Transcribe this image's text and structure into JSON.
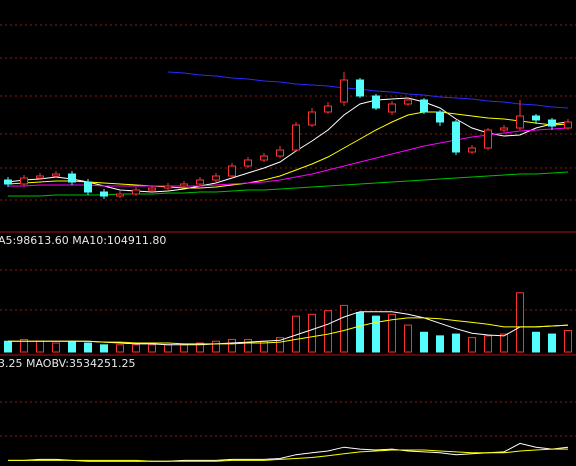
{
  "chart_data": [
    {
      "type": "candlestick",
      "open": [
        52,
        48,
        54,
        56,
        58,
        50,
        40,
        36,
        38,
        42,
        44,
        46,
        48,
        52,
        56,
        66,
        72,
        76,
        82,
        107,
        120,
        130,
        152,
        136,
        120,
        128,
        132,
        120,
        110,
        80,
        84,
        102,
        104,
        116,
        112,
        104
      ],
      "high": [
        55,
        57,
        59,
        61,
        61,
        53,
        43,
        41,
        45,
        47,
        49,
        51,
        55,
        59,
        69,
        75,
        79,
        86,
        110,
        124,
        130,
        160,
        154,
        138,
        131,
        135,
        134,
        122,
        112,
        87,
        104,
        107,
        132,
        118,
        114,
        113
      ],
      "low": [
        45,
        46,
        52,
        54,
        47,
        37,
        33,
        34,
        36,
        40,
        42,
        44,
        46,
        50,
        54,
        64,
        70,
        74,
        80,
        105,
        118,
        126,
        134,
        122,
        117,
        126,
        118,
        106,
        77,
        78,
        82,
        100,
        102,
        108,
        102,
        102
      ],
      "close": [
        48,
        54,
        56,
        58,
        50,
        40,
        36,
        38,
        42,
        44,
        46,
        48,
        52,
        56,
        66,
        72,
        76,
        82,
        107,
        120,
        126,
        152,
        136,
        124,
        128,
        132,
        120,
        110,
        80,
        84,
        102,
        104,
        116,
        112,
        106,
        110
      ],
      "up_color": "#ff3232",
      "down_color": "#54fcfc",
      "lines": [
        {
          "color": "#ffffff",
          "values": [
            50,
            52,
            53,
            55,
            53,
            50,
            46,
            42,
            41,
            40,
            41,
            43,
            46,
            49,
            54,
            59,
            64,
            70,
            81,
            91,
            102,
            117,
            128,
            132,
            133,
            134,
            130,
            124,
            113,
            104,
            99,
            96,
            97,
            104,
            108,
            110
          ]
        },
        {
          "color": "#ffff00",
          "values": [
            48,
            49,
            50,
            51,
            51,
            50,
            49,
            48,
            47,
            46,
            45,
            44,
            44,
            45,
            47,
            49,
            52,
            56,
            62,
            68,
            75,
            84,
            93,
            102,
            110,
            117,
            120,
            120,
            118,
            116,
            114,
            113,
            111,
            109,
            107,
            108
          ]
        },
        {
          "color": "#ff00ff",
          "values": [
            46,
            46,
            47,
            47,
            47,
            47,
            46,
            46,
            46,
            46,
            46,
            46,
            46,
            47,
            48,
            49,
            50,
            52,
            55,
            58,
            62,
            66,
            70,
            74,
            78,
            82,
            86,
            89,
            92,
            95,
            97,
            99,
            101,
            102,
            103,
            104
          ]
        },
        {
          "color": "#00c000",
          "values": [
            36,
            36,
            36,
            37,
            37,
            37,
            37,
            38,
            38,
            38,
            39,
            39,
            40,
            40,
            41,
            42,
            42,
            43,
            44,
            45,
            46,
            47,
            48,
            49,
            50,
            51,
            52,
            53,
            54,
            55,
            56,
            57,
            58,
            58,
            59,
            60
          ]
        },
        {
          "color": "#2a2aff",
          "values": [
            null,
            null,
            null,
            null,
            null,
            null,
            null,
            null,
            null,
            null,
            160,
            159,
            157,
            156,
            154,
            153,
            151,
            150,
            148,
            147,
            146,
            144,
            143,
            141,
            140,
            138,
            137,
            135,
            134,
            133,
            131,
            130,
            128,
            127,
            125,
            124
          ]
        }
      ],
      "ylim": [
        0,
        232
      ]
    },
    {
      "type": "bar",
      "legend": "A5:98613.60  MA10:104911.80",
      "values": [
        12,
        14,
        12,
        10,
        12,
        10,
        8,
        8,
        8,
        8,
        8,
        8,
        10,
        12,
        14,
        14,
        12,
        16,
        40,
        42,
        46,
        52,
        44,
        40,
        42,
        30,
        22,
        18,
        20,
        16,
        18,
        20,
        66,
        22,
        20,
        24
      ],
      "lines": [
        {
          "color": "#ffffff",
          "values": [
            12,
            12,
            12,
            12,
            12,
            12,
            11,
            10,
            9,
            9,
            8,
            8,
            8,
            9,
            10,
            11,
            12,
            13,
            19,
            25,
            31,
            39,
            45,
            45,
            45,
            42,
            38,
            32,
            26,
            21,
            19,
            18,
            28,
            28,
            29,
            30
          ]
        },
        {
          "color": "#ffff00",
          "values": [
            12,
            12,
            12,
            12,
            12,
            12,
            11,
            11,
            10,
            10,
            10,
            9,
            9,
            9,
            9,
            10,
            10,
            11,
            14,
            17,
            20,
            24,
            29,
            33,
            36,
            38,
            38,
            37,
            35,
            33,
            31,
            28,
            28,
            28,
            29,
            30
          ]
        }
      ],
      "ylim": [
        0,
        116
      ]
    },
    {
      "type": "line",
      "legend": "3.25  MAOBV:3534251.25",
      "series": [
        {
          "color": "#ffffff",
          "values": [
            6,
            6,
            7,
            7,
            6,
            5,
            5,
            5,
            5,
            5,
            5,
            6,
            6,
            6,
            7,
            7,
            7,
            8,
            12,
            14,
            16,
            20,
            18,
            17,
            18,
            16,
            15,
            14,
            12,
            13,
            14,
            15,
            24,
            20,
            18,
            20
          ]
        },
        {
          "color": "#ffff00",
          "values": [
            6,
            6,
            6,
            6,
            6,
            6,
            6,
            6,
            6,
            5,
            5,
            5,
            5,
            5,
            6,
            6,
            6,
            7,
            8,
            9,
            11,
            13,
            15,
            16,
            17,
            17,
            17,
            16,
            15,
            14,
            14,
            14,
            16,
            17,
            18,
            18
          ]
        }
      ],
      "ylim": [
        0,
        100
      ]
    }
  ]
}
